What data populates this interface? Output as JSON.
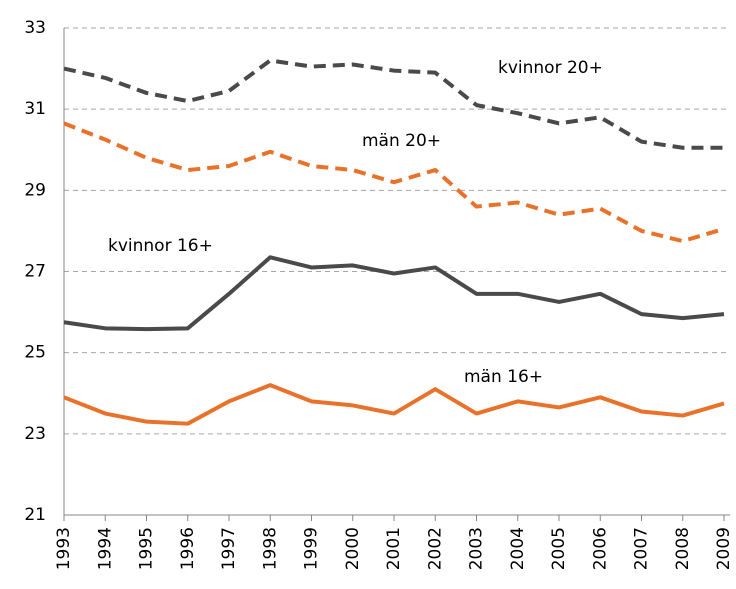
{
  "chart_data": {
    "type": "line",
    "x": [
      "1993",
      "1994",
      "1995",
      "1996",
      "1997",
      "1998",
      "1999",
      "2000",
      "2001",
      "2002",
      "2003",
      "2004",
      "2005",
      "2006",
      "2007",
      "2008",
      "2009"
    ],
    "series": [
      {
        "name": "kvinnor 20+",
        "color": "#4a4a4a",
        "dashed": true,
        "values": [
          32.0,
          31.77,
          31.4,
          31.2,
          31.45,
          32.2,
          32.05,
          32.1,
          31.95,
          31.9,
          31.1,
          30.9,
          30.65,
          30.8,
          30.2,
          30.05,
          30.05
        ]
      },
      {
        "name": "män 20+",
        "color": "#e8722a",
        "dashed": true,
        "values": [
          30.65,
          30.25,
          29.8,
          29.5,
          29.6,
          29.95,
          29.6,
          29.5,
          29.2,
          29.5,
          28.6,
          28.7,
          28.4,
          28.55,
          28.0,
          27.75,
          28.05
        ]
      },
      {
        "name": "kvinnor 16+",
        "color": "#4a4a4a",
        "dashed": false,
        "values": [
          25.75,
          25.6,
          25.58,
          25.6,
          26.45,
          27.35,
          27.1,
          27.15,
          26.95,
          27.1,
          26.45,
          26.45,
          26.25,
          26.45,
          25.95,
          25.85,
          25.95
        ]
      },
      {
        "name": "män 16+",
        "color": "#e8722a",
        "dashed": false,
        "values": [
          23.9,
          23.5,
          23.3,
          23.25,
          23.8,
          24.2,
          23.8,
          23.7,
          23.5,
          24.1,
          23.5,
          23.8,
          23.65,
          23.9,
          23.55,
          23.45,
          23.75
        ]
      }
    ],
    "ylim": [
      21,
      33
    ],
    "yticks": [
      21,
      23,
      25,
      27,
      29,
      31,
      33
    ],
    "grid": true
  }
}
